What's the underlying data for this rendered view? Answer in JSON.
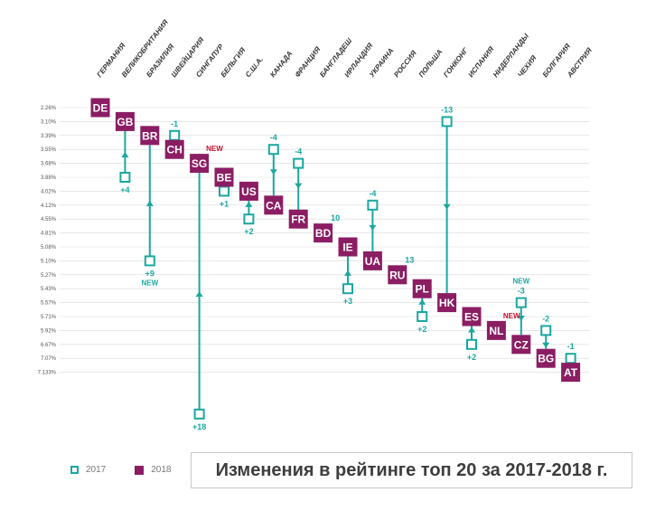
{
  "chart_data": {
    "type": "slope-ranking",
    "title": "Изменения в рейтинге топ 20 за 2017-2018 г.",
    "legend": [
      {
        "label": "2017",
        "style": "outline",
        "color": "#1aa7a0"
      },
      {
        "label": "2018",
        "style": "filled",
        "color": "#8b1d63"
      }
    ],
    "y_ticks": [
      "2.26%",
      "3.10%",
      "3.39%",
      "3.55%",
      "3.68%",
      "3.88%",
      "4.02%",
      "4.12%",
      "4.55%",
      "4.81%",
      "5.08%",
      "5.10%",
      "5.27%",
      "5.43%",
      "5.57%",
      "5.71%",
      "5.92%",
      "6.67%",
      "7.07%",
      "7.133%"
    ],
    "countries": [
      {
        "name": "ГЕРМАНИЯ",
        "code": "DE",
        "rank2018": 1,
        "rank2017": null,
        "change": ""
      },
      {
        "name": "ВЕЛИКОБРИТАНИЯ",
        "code": "GB",
        "rank2018": 2,
        "rank2017": 6,
        "change": "+4"
      },
      {
        "name": "БРАЗИЛИЯ",
        "code": "BR",
        "rank2018": 3,
        "rank2017": 12,
        "change": "+9"
      },
      {
        "name": "ШВЕЙЦАРИЯ",
        "code": "CH",
        "rank2018": 4,
        "rank2017": 3,
        "change": "-1"
      },
      {
        "name": "СИНГАПУР",
        "code": "SG",
        "rank2018": 5,
        "rank2017": 23,
        "change": "+18"
      },
      {
        "name": "БЕЛЬГИЯ",
        "code": "BE",
        "rank2018": 6,
        "rank2017": 7,
        "change": "+1"
      },
      {
        "name": "С.Ш.А.",
        "code": "US",
        "rank2018": 7,
        "rank2017": 9,
        "change": "+2"
      },
      {
        "name": "КАНАДА",
        "code": "CA",
        "rank2018": 8,
        "rank2017": 4,
        "change": "-4"
      },
      {
        "name": "ФРАНЦИЯ",
        "code": "FR",
        "rank2018": 9,
        "rank2017": 5,
        "change": "-4"
      },
      {
        "name": "БАНГЛАДЕШ",
        "code": "BD",
        "rank2018": 10,
        "rank2017": null,
        "change": "10"
      },
      {
        "name": "ИРЛАНДИЯ",
        "code": "IE",
        "rank2018": 11,
        "rank2017": 14,
        "change": "+3"
      },
      {
        "name": "УКРАИНА",
        "code": "UA",
        "rank2018": 12,
        "rank2017": 8,
        "change": "-4"
      },
      {
        "name": "РОССИЯ",
        "code": "RU",
        "rank2018": 13,
        "rank2017": null,
        "change": "13"
      },
      {
        "name": "ПОЛЬША",
        "code": "PL",
        "rank2018": 14,
        "rank2017": 16,
        "change": "+2"
      },
      {
        "name": "ГОНКОНГ",
        "code": "HK",
        "rank2018": 15,
        "rank2017": 2,
        "change": "-13"
      },
      {
        "name": "ИСПАНИЯ",
        "code": "ES",
        "rank2018": 16,
        "rank2017": 18,
        "change": "+2"
      },
      {
        "name": "НИДЕРЛАНДЫ",
        "code": "NL",
        "rank2018": 17,
        "rank2017": null,
        "change": ""
      },
      {
        "name": "ЧЕХИЯ",
        "code": "CZ",
        "rank2018": 18,
        "rank2017": 15,
        "change": "-3"
      },
      {
        "name": "БОЛГАРИЯ",
        "code": "BG",
        "rank2018": 19,
        "rank2017": 17,
        "change": "-2"
      },
      {
        "name": "АВСТРИЯ",
        "code": "AT",
        "rank2018": 20,
        "rank2017": 19,
        "change": "-1"
      }
    ],
    "new_tags": [
      {
        "code": "SG",
        "text": "NEW",
        "color": "#c8102e",
        "placement": "above-2018"
      },
      {
        "code": "NL",
        "text": "NEW",
        "color": "#c8102e",
        "placement": "above-2018"
      },
      {
        "code": "BR",
        "text": "NEW",
        "color": "#1aa7a0",
        "placement": "below-change"
      },
      {
        "code": "CZ",
        "text": "NEW",
        "color": "#1aa7a0",
        "placement": "above-change"
      }
    ],
    "colors": {
      "box2017": "#1aa7a0",
      "box2018": "#8b1d63",
      "line": "#1aa7a0",
      "new": "#c8102e",
      "grid": "#d9d9d9"
    }
  }
}
